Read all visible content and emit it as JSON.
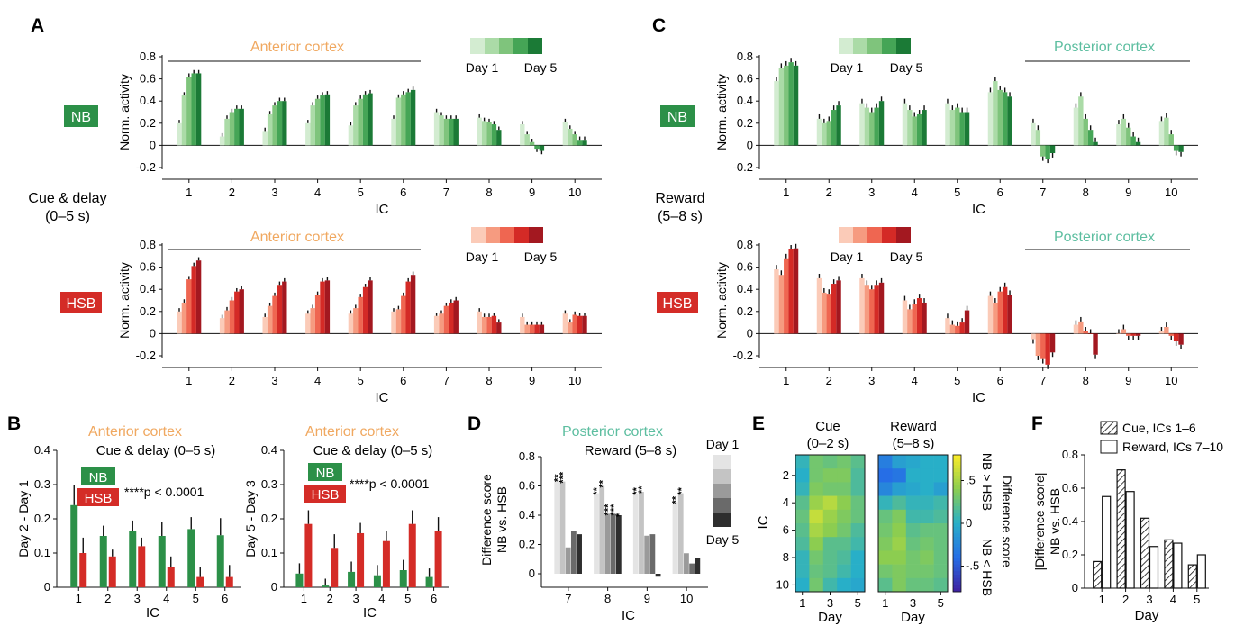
{
  "figure": {
    "panel_letters": [
      "A",
      "B",
      "C",
      "D",
      "E",
      "F"
    ],
    "colors": {
      "nb": [
        "#d3ecd1",
        "#abdba7",
        "#7fc47c",
        "#45a556",
        "#1b7a36"
      ],
      "hsb": [
        "#fbcbb8",
        "#f69b80",
        "#ef6651",
        "#d42a26",
        "#a31820"
      ],
      "gray": [
        "#e4e4e4",
        "#c4c4c4",
        "#9a9a9a",
        "#6a6a6a",
        "#2e2e2e"
      ],
      "nb_badge": "#2c9048",
      "hsb_badge": "#d42c27",
      "anterior_title": "#f0a860",
      "posterior_title": "#5dbea0"
    }
  },
  "panel_a": {
    "side_label_line1": "Cue & delay",
    "side_label_line2": "(0–5 s)",
    "region_title": "Anterior cortex",
    "nb_badge": "NB",
    "hsb_badge": "HSB",
    "day_first": "Day 1",
    "day_last": "Day 5"
  },
  "panel_c": {
    "side_label_line1": "Reward",
    "side_label_line2": "(5–8 s)",
    "region_title": "Posterior cortex",
    "nb_badge": "NB",
    "hsb_badge": "HSB",
    "day_first": "Day 1",
    "day_last": "Day 5"
  },
  "panel_b": {
    "left_title": "Anterior cortex",
    "left_subtitle": "Cue & delay (0–5 s)",
    "right_title": "Anterior cortex",
    "right_subtitle": "Cue & delay (0–5 s)",
    "nb_badge": "NB",
    "hsb_badge": "HSB",
    "pvalue_left": "****p < 0.0001",
    "pvalue_right": "****p < 0.0001"
  },
  "panel_d": {
    "title": "Posterior cortex",
    "subtitle": "Reward (5–8 s)",
    "day_first": "Day 1",
    "day_last": "Day 5"
  },
  "panel_e": {
    "title_cue_line1": "Cue",
    "title_cue_line2": "(0–2 s)",
    "title_reward_line1": "Reward",
    "title_reward_line2": "(5–8 s)",
    "colorbar_title": "Difference score",
    "colorbar_top_label": "NB > HSB",
    "colorbar_bottom_label": "NB < HSB"
  },
  "panel_f": {
    "legend_cue": "Cue, ICs 1–6",
    "legend_reward": "Reward, ICs 7–10"
  },
  "chart_data": [
    {
      "id": "A_NB",
      "type": "bar",
      "title": "Anterior cortex",
      "xlabel": "IC",
      "ylabel": "Norm. activity",
      "categories": [
        "1",
        "2",
        "3",
        "4",
        "5",
        "6",
        "7",
        "8",
        "9",
        "10"
      ],
      "series_names": [
        "Day 1",
        "Day 2",
        "Day 3",
        "Day 4",
        "Day 5"
      ],
      "values": [
        [
          0.2,
          0.45,
          0.62,
          0.65,
          0.65
        ],
        [
          0.08,
          0.24,
          0.3,
          0.33,
          0.33
        ],
        [
          0.13,
          0.28,
          0.36,
          0.4,
          0.4
        ],
        [
          0.2,
          0.36,
          0.42,
          0.45,
          0.46
        ],
        [
          0.18,
          0.36,
          0.42,
          0.46,
          0.47
        ],
        [
          0.24,
          0.43,
          0.46,
          0.48,
          0.5
        ],
        [
          0.3,
          0.27,
          0.24,
          0.24,
          0.24
        ],
        [
          0.25,
          0.22,
          0.21,
          0.19,
          0.14
        ],
        [
          0.19,
          0.1,
          0.03,
          -0.03,
          -0.05
        ],
        [
          0.21,
          0.15,
          0.1,
          0.05,
          0.05
        ]
      ],
      "errors": [
        0.03,
        0.03,
        0.03,
        0.03,
        0.03
      ],
      "yticks": [
        -0.2,
        0,
        0.2,
        0.4,
        0.6,
        0.8
      ],
      "ylim": [
        -0.3,
        0.9
      ]
    },
    {
      "id": "A_HSB",
      "type": "bar",
      "title": "Anterior cortex",
      "xlabel": "IC",
      "ylabel": "Norm. activity",
      "categories": [
        "1",
        "2",
        "3",
        "4",
        "5",
        "6",
        "7",
        "8",
        "9",
        "10"
      ],
      "series_names": [
        "Day 1",
        "Day 2",
        "Day 3",
        "Day 4",
        "Day 5"
      ],
      "values": [
        [
          0.2,
          0.28,
          0.49,
          0.61,
          0.66
        ],
        [
          0.14,
          0.21,
          0.3,
          0.38,
          0.4
        ],
        [
          0.15,
          0.25,
          0.34,
          0.44,
          0.47
        ],
        [
          0.18,
          0.23,
          0.35,
          0.47,
          0.48
        ],
        [
          0.18,
          0.23,
          0.33,
          0.42,
          0.48
        ],
        [
          0.2,
          0.22,
          0.34,
          0.47,
          0.53
        ],
        [
          0.16,
          0.18,
          0.25,
          0.28,
          0.3
        ],
        [
          0.2,
          0.15,
          0.15,
          0.16,
          0.1
        ],
        [
          0.15,
          0.08,
          0.08,
          0.08,
          0.08
        ],
        [
          0.18,
          0.1,
          0.17,
          0.16,
          0.16
        ]
      ],
      "errors": [
        0.03,
        0.03,
        0.03,
        0.03,
        0.03
      ],
      "yticks": [
        -0.2,
        0,
        0.2,
        0.4,
        0.6,
        0.8
      ],
      "ylim": [
        -0.3,
        0.9
      ]
    },
    {
      "id": "C_NB",
      "type": "bar",
      "title": "Posterior cortex",
      "xlabel": "IC",
      "ylabel": "Norm. activity",
      "categories": [
        "1",
        "2",
        "3",
        "4",
        "5",
        "6",
        "7",
        "8",
        "9",
        "10"
      ],
      "series_names": [
        "Day 1",
        "Day 2",
        "Day 3",
        "Day 4",
        "Day 5"
      ],
      "values": [
        [
          0.58,
          0.7,
          0.72,
          0.75,
          0.72
        ],
        [
          0.24,
          0.2,
          0.22,
          0.32,
          0.36
        ],
        [
          0.38,
          0.34,
          0.3,
          0.34,
          0.4
        ],
        [
          0.38,
          0.32,
          0.26,
          0.28,
          0.32
        ],
        [
          0.38,
          0.32,
          0.34,
          0.3,
          0.3
        ],
        [
          0.48,
          0.58,
          0.5,
          0.48,
          0.44
        ],
        [
          0.2,
          0.14,
          -0.1,
          -0.12,
          -0.07
        ],
        [
          0.34,
          0.44,
          0.24,
          0.14,
          0.03
        ],
        [
          0.19,
          0.24,
          0.16,
          0.08,
          0.03
        ],
        [
          0.22,
          0.25,
          0.1,
          -0.05,
          -0.06
        ]
      ],
      "errors": [
        0.04,
        0.04,
        0.04,
        0.04,
        0.04
      ],
      "yticks": [
        -0.2,
        0,
        0.2,
        0.4,
        0.6,
        0.8
      ],
      "ylim": [
        -0.3,
        0.9
      ]
    },
    {
      "id": "C_HSB",
      "type": "bar",
      "title": "Posterior cortex",
      "xlabel": "IC",
      "ylabel": "Norm. activity",
      "categories": [
        "1",
        "2",
        "3",
        "4",
        "5",
        "6",
        "7",
        "8",
        "9",
        "10"
      ],
      "series_names": [
        "Day 1",
        "Day 2",
        "Day 3",
        "Day 4",
        "Day 5"
      ],
      "values": [
        [
          0.58,
          0.53,
          0.68,
          0.76,
          0.77
        ],
        [
          0.5,
          0.37,
          0.36,
          0.45,
          0.48
        ],
        [
          0.5,
          0.44,
          0.4,
          0.44,
          0.46
        ],
        [
          0.3,
          0.22,
          0.27,
          0.32,
          0.28
        ],
        [
          0.14,
          0.08,
          0.07,
          0.1,
          0.21
        ],
        [
          0.34,
          0.28,
          0.38,
          0.42,
          0.35
        ],
        [
          -0.05,
          -0.2,
          -0.23,
          -0.28,
          -0.17
        ],
        [
          0.08,
          0.11,
          0.02,
          0.0,
          -0.19
        ],
        [
          0.0,
          0.04,
          -0.02,
          -0.02,
          -0.02
        ],
        [
          0.02,
          0.06,
          -0.02,
          -0.07,
          -0.1
        ]
      ],
      "errors": [
        0.04,
        0.04,
        0.04,
        0.04,
        0.04
      ],
      "yticks": [
        -0.2,
        0,
        0.2,
        0.4,
        0.6,
        0.8
      ],
      "ylim": [
        -0.3,
        0.9
      ]
    },
    {
      "id": "B_left",
      "type": "bar",
      "title": "Anterior cortex",
      "subtitle": "Cue & delay (0–5 s)",
      "xlabel": "IC",
      "ylabel": "Day 2 - Day 1",
      "categories": [
        "1",
        "2",
        "3",
        "4",
        "5",
        "6"
      ],
      "series": [
        {
          "name": "NB",
          "values": [
            0.24,
            0.15,
            0.165,
            0.15,
            0.17,
            0.152
          ]
        },
        {
          "name": "HSB",
          "values": [
            0.1,
            0.09,
            0.12,
            0.06,
            0.03,
            0.03
          ]
        }
      ],
      "errors": [
        [
          0.06,
          0.03,
          0.03,
          0.04,
          0.035,
          0.05
        ],
        [
          0.045,
          0.02,
          0.025,
          0.03,
          0.03,
          0.035
        ]
      ],
      "yticks": [
        0,
        0.1,
        0.2,
        0.3,
        0.4
      ],
      "ylim": [
        0,
        0.4
      ],
      "annotation": "****p < 0.0001"
    },
    {
      "id": "B_right",
      "type": "bar",
      "title": "Anterior cortex",
      "subtitle": "Cue & delay (0–5 s)",
      "xlabel": "IC",
      "ylabel": "Day 5 - Day 3",
      "categories": [
        "1",
        "2",
        "3",
        "4",
        "5",
        "6"
      ],
      "series": [
        {
          "name": "NB",
          "values": [
            0.04,
            0.005,
            0.045,
            0.035,
            0.05,
            0.03
          ]
        },
        {
          "name": "HSB",
          "values": [
            0.185,
            0.115,
            0.158,
            0.135,
            0.185,
            0.165
          ]
        }
      ],
      "errors": [
        [
          0.03,
          0.02,
          0.03,
          0.03,
          0.03,
          0.025
        ],
        [
          0.04,
          0.04,
          0.03,
          0.03,
          0.04,
          0.04
        ]
      ],
      "yticks": [
        0,
        0.1,
        0.2,
        0.3,
        0.4
      ],
      "ylim": [
        0,
        0.4
      ],
      "annotation": "****p < 0.0001"
    },
    {
      "id": "D",
      "type": "bar",
      "title": "Posterior cortex",
      "subtitle": "Reward (5–8 s)",
      "xlabel": "IC",
      "ylabel": "Difference score\nNB vs. HSB",
      "categories": [
        "7",
        "8",
        "9",
        "10"
      ],
      "series_names": [
        "Day 1",
        "Day 2",
        "Day 3",
        "Day 4",
        "Day 5"
      ],
      "values": [
        [
          0.64,
          0.63,
          0.18,
          0.29,
          0.27
        ],
        [
          0.55,
          0.6,
          0.41,
          0.41,
          0.4
        ],
        [
          0.55,
          0.56,
          0.26,
          0.27,
          -0.02
        ],
        [
          0.49,
          0.55,
          0.14,
          0.07,
          0.11
        ]
      ],
      "significance": [
        [
          "**",
          "***",
          "",
          "",
          ""
        ],
        [
          "**",
          "**",
          "***",
          "***",
          "*"
        ],
        [
          "**",
          "**",
          "",
          "",
          ""
        ],
        [
          "**",
          "**",
          "",
          "",
          ""
        ]
      ],
      "yticks": [
        0,
        0.2,
        0.4,
        0.6,
        0.8
      ],
      "ylim": [
        -0.05,
        0.85
      ]
    },
    {
      "id": "E",
      "type": "heatmap",
      "xlabel": "Day",
      "ylabel": "IC",
      "x": [
        1,
        2,
        3,
        4,
        5
      ],
      "y": [
        1,
        2,
        3,
        4,
        5,
        6,
        7,
        8,
        9,
        10
      ],
      "xticks": [
        1,
        3,
        5
      ],
      "yticks": [
        2,
        4,
        6,
        8,
        10
      ],
      "colorbar_ticks": [
        -0.5,
        0,
        0.5
      ],
      "colorbar_ticklabels": [
        "-.5",
        "0",
        ".5"
      ],
      "clim": [
        -0.8,
        0.8
      ],
      "panels": [
        {
          "name": "Cue (0–2 s)",
          "values": [
            [
              0.05,
              0.3,
              0.25,
              0.3,
              0.2
            ],
            [
              0.0,
              0.3,
              0.35,
              0.35,
              0.15
            ],
            [
              0.05,
              0.35,
              0.3,
              0.3,
              0.15
            ],
            [
              0.2,
              0.45,
              0.55,
              0.4,
              0.25
            ],
            [
              0.25,
              0.6,
              0.45,
              0.35,
              0.25
            ],
            [
              0.2,
              0.5,
              0.4,
              0.3,
              0.15
            ],
            [
              0.15,
              0.4,
              0.2,
              0.2,
              0.1
            ],
            [
              0.05,
              0.3,
              0.2,
              0.15,
              0.0
            ],
            [
              0.05,
              0.25,
              0.2,
              0.1,
              0.0
            ],
            [
              0.0,
              0.3,
              0.1,
              0.0,
              -0.05
            ]
          ]
        },
        {
          "name": "Reward (5–8 s)",
          "values": [
            [
              -0.3,
              -0.1,
              -0.05,
              0.0,
              0.0
            ],
            [
              -0.4,
              -0.35,
              0.0,
              0.0,
              0.0
            ],
            [
              -0.25,
              -0.1,
              -0.05,
              0.0,
              -0.1
            ],
            [
              0.05,
              0.15,
              0.05,
              0.05,
              0.1
            ],
            [
              0.25,
              0.35,
              0.1,
              0.1,
              0.15
            ],
            [
              0.3,
              0.4,
              0.2,
              0.25,
              0.25
            ],
            [
              0.35,
              0.45,
              0.25,
              0.3,
              0.25
            ],
            [
              0.4,
              0.4,
              0.3,
              0.35,
              0.25
            ],
            [
              0.3,
              0.35,
              0.3,
              0.3,
              0.25
            ],
            [
              0.2,
              0.35,
              0.25,
              0.25,
              0.2
            ]
          ]
        }
      ]
    },
    {
      "id": "F",
      "type": "bar",
      "xlabel": "Day",
      "ylabel": "|Difference score|\nNB vs. HSB",
      "categories": [
        "1",
        "2",
        "3",
        "4",
        "5"
      ],
      "series": [
        {
          "name": "Cue, ICs 1–6",
          "values": [
            0.16,
            0.71,
            0.42,
            0.29,
            0.14
          ]
        },
        {
          "name": "Reward, ICs 7–10",
          "values": [
            0.55,
            0.58,
            0.25,
            0.27,
            0.2
          ]
        }
      ],
      "yticks": [
        0,
        0.2,
        0.4,
        0.6,
        0.8
      ],
      "ylim": [
        0,
        0.8
      ]
    }
  ]
}
